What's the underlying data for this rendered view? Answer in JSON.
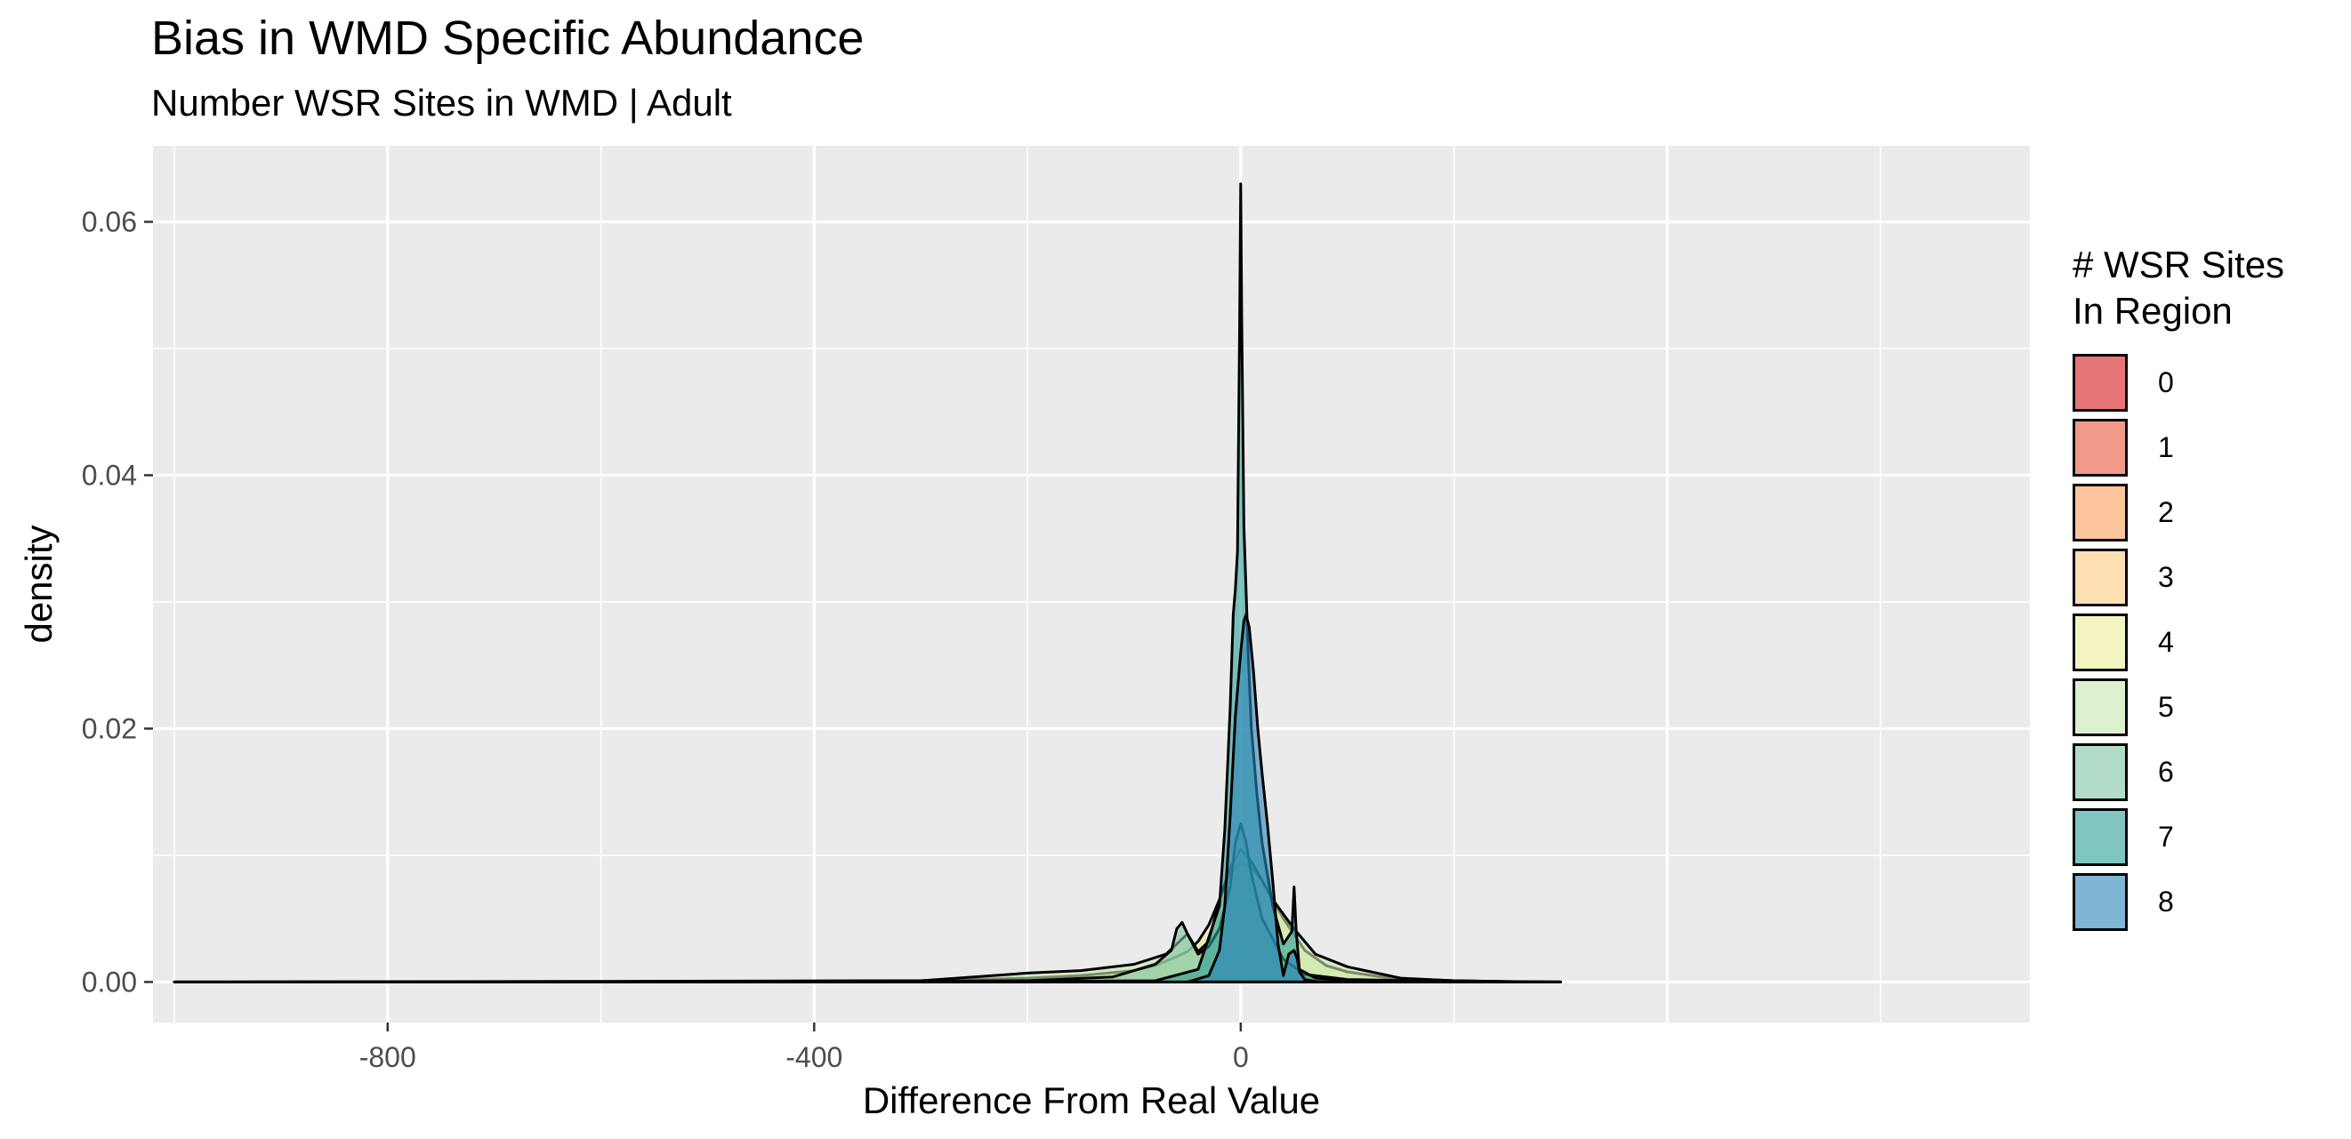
{
  "chart_data": {
    "type": "area",
    "title": "Bias in WMD Specific Abundance",
    "subtitle": "Number WSR Sites in WMD | Adult",
    "xlabel": "Difference From Real Value",
    "ylabel": "density",
    "xlim": [
      -1020,
      740
    ],
    "ylim": [
      -0.0032,
      0.066
    ],
    "x_ticks": [
      -800,
      -400,
      0
    ],
    "y_ticks": [
      0.0,
      0.02,
      0.04,
      0.06
    ],
    "x_tick_labels": [
      "-800",
      "-400",
      "0"
    ],
    "y_tick_labels": [
      "0.00",
      "0.02",
      "0.04",
      "0.06"
    ],
    "grid": true,
    "legend": {
      "title": "# WSR Sites\nIn Region",
      "position": "right",
      "entries": [
        "0",
        "1",
        "2",
        "3",
        "4",
        "5",
        "6",
        "7",
        "8"
      ]
    },
    "colors": [
      "#d7191c",
      "#e8553a",
      "#f99d59",
      "#fec980",
      "#ebec98",
      "#c7e8ad",
      "#80c4a3",
      "#2b9e97",
      "#2b83ba"
    ],
    "series": [
      {
        "name": "4",
        "x": [
          -1000,
          -600,
          -300,
          -200,
          -150,
          -100,
          -80,
          -60,
          -50,
          -40,
          -30,
          -20,
          -10,
          0,
          10,
          20,
          40,
          60,
          80,
          100,
          140,
          200,
          260,
          300
        ],
        "y": [
          0,
          5e-05,
          0.0001,
          0.0003,
          0.0005,
          0.0009,
          0.0013,
          0.002,
          0.0024,
          0.0032,
          0.0045,
          0.0065,
          0.0085,
          0.0095,
          0.009,
          0.008,
          0.005,
          0.0025,
          0.0013,
          0.0008,
          0.0003,
          0.0001,
          3e-05,
          0
        ]
      },
      {
        "name": "5",
        "x": [
          -1000,
          -500,
          -300,
          -200,
          -150,
          -100,
          -70,
          -50,
          -40,
          -30,
          -20,
          -10,
          0,
          10,
          30,
          50,
          70,
          100,
          150,
          200,
          260,
          300
        ],
        "y": [
          0,
          4e-05,
          0.0001,
          0.0007,
          0.0009,
          0.0014,
          0.0022,
          0.0038,
          0.0024,
          0.0032,
          0.0065,
          0.009,
          0.0105,
          0.0095,
          0.0065,
          0.0042,
          0.0022,
          0.0012,
          0.0003,
          0.0001,
          2e-05,
          0
        ]
      },
      {
        "name": "6",
        "x": [
          -1000,
          -400,
          -200,
          -120,
          -80,
          -65,
          -60,
          -55,
          -50,
          -40,
          -30,
          -20,
          -10,
          -5,
          0,
          5,
          10,
          20,
          40,
          60,
          100,
          200,
          300
        ],
        "y": [
          0,
          3e-05,
          0.0001,
          0.0004,
          0.0014,
          0.0025,
          0.0042,
          0.0047,
          0.0038,
          0.0022,
          0.0028,
          0.0042,
          0.0075,
          0.011,
          0.0125,
          0.011,
          0.0085,
          0.005,
          0.0018,
          0.0006,
          0.0002,
          3e-05,
          0
        ]
      },
      {
        "name": "7",
        "x": [
          -300,
          -80,
          -40,
          -20,
          -15,
          -10,
          -7,
          -5,
          -3,
          -1,
          0,
          1,
          3,
          5,
          7,
          10,
          15,
          20,
          30,
          40,
          48,
          50,
          52,
          55,
          70,
          100,
          200
        ],
        "y": [
          0,
          0.0001,
          0.001,
          0.006,
          0.012,
          0.0215,
          0.029,
          0.031,
          0.034,
          0.052,
          0.063,
          0.052,
          0.036,
          0.031,
          0.026,
          0.02,
          0.015,
          0.011,
          0.006,
          0.003,
          0.004,
          0.0075,
          0.004,
          0.001,
          0.0003,
          0.0001,
          0
        ]
      },
      {
        "name": "8",
        "x": [
          -50,
          -30,
          -20,
          -15,
          -10,
          -5,
          0,
          3,
          5,
          8,
          12,
          16,
          20,
          25,
          30,
          35,
          40,
          45,
          50,
          53,
          55,
          60,
          70,
          80,
          100
        ],
        "y": [
          0,
          0.0005,
          0.0025,
          0.006,
          0.013,
          0.021,
          0.026,
          0.0285,
          0.029,
          0.028,
          0.0245,
          0.02,
          0.0165,
          0.0125,
          0.008,
          0.003,
          0.0005,
          0.0022,
          0.0025,
          0.0018,
          0.0008,
          0.0002,
          5e-05,
          0,
          0
        ]
      }
    ]
  }
}
